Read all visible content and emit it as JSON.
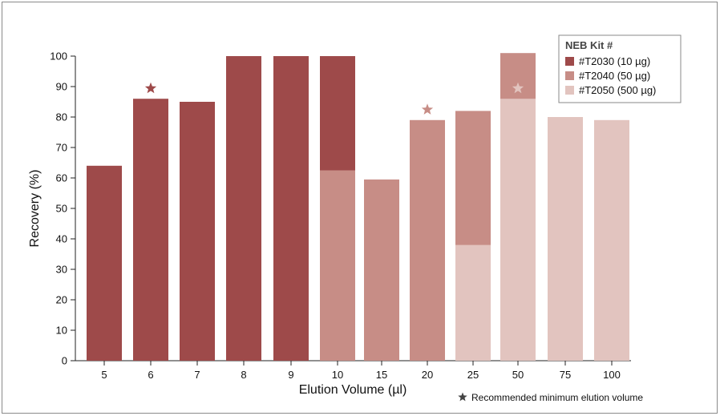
{
  "chart_data": {
    "type": "bar",
    "title": "",
    "xlabel": "Elution Volume (µl)",
    "ylabel": "Recovery (%)",
    "ylim": [
      0,
      100
    ],
    "yticks": [
      "0",
      "10",
      "20",
      "30",
      "40",
      "50",
      "60",
      "70",
      "80",
      "90",
      "100"
    ],
    "categories": [
      "5",
      "6",
      "7",
      "8",
      "9",
      "10",
      "15",
      "20",
      "25",
      "50",
      "75",
      "100"
    ],
    "legend": {
      "title": "NEB Kit #",
      "placement": "top-right"
    },
    "series": [
      {
        "name": "#T2030 (10 µg)",
        "color": "#9e4a4a",
        "points": [
          {
            "x": "5",
            "y": 64
          },
          {
            "x": "6",
            "y": 86
          },
          {
            "x": "7",
            "y": 85
          },
          {
            "x": "8",
            "y": 100
          },
          {
            "x": "9",
            "y": 100
          },
          {
            "x": "10",
            "y": 100
          }
        ]
      },
      {
        "name": "#T2040 (50 µg)",
        "color": "#c78d86",
        "points": [
          {
            "x": "10",
            "y": 62.5
          },
          {
            "x": "15",
            "y": 59.5
          },
          {
            "x": "20",
            "y": 79
          },
          {
            "x": "25",
            "y": 82
          },
          {
            "x": "50",
            "y": 101
          }
        ]
      },
      {
        "name": "#T2050 (500 µg)",
        "color": "#e2c4bf",
        "points": [
          {
            "x": "25",
            "y": 38
          },
          {
            "x": "50",
            "y": 86
          },
          {
            "x": "75",
            "y": 80
          },
          {
            "x": "100",
            "y": 79
          }
        ]
      }
    ],
    "recommended_markers": [
      {
        "series": "#T2030 (10 µg)",
        "x": "6"
      },
      {
        "series": "#T2040 (50 µg)",
        "x": "20"
      },
      {
        "series": "#T2050 (500 µg)",
        "x": "50"
      }
    ],
    "footnote": "Recommended minimum elution volume",
    "footnote_icon": "star-icon"
  }
}
